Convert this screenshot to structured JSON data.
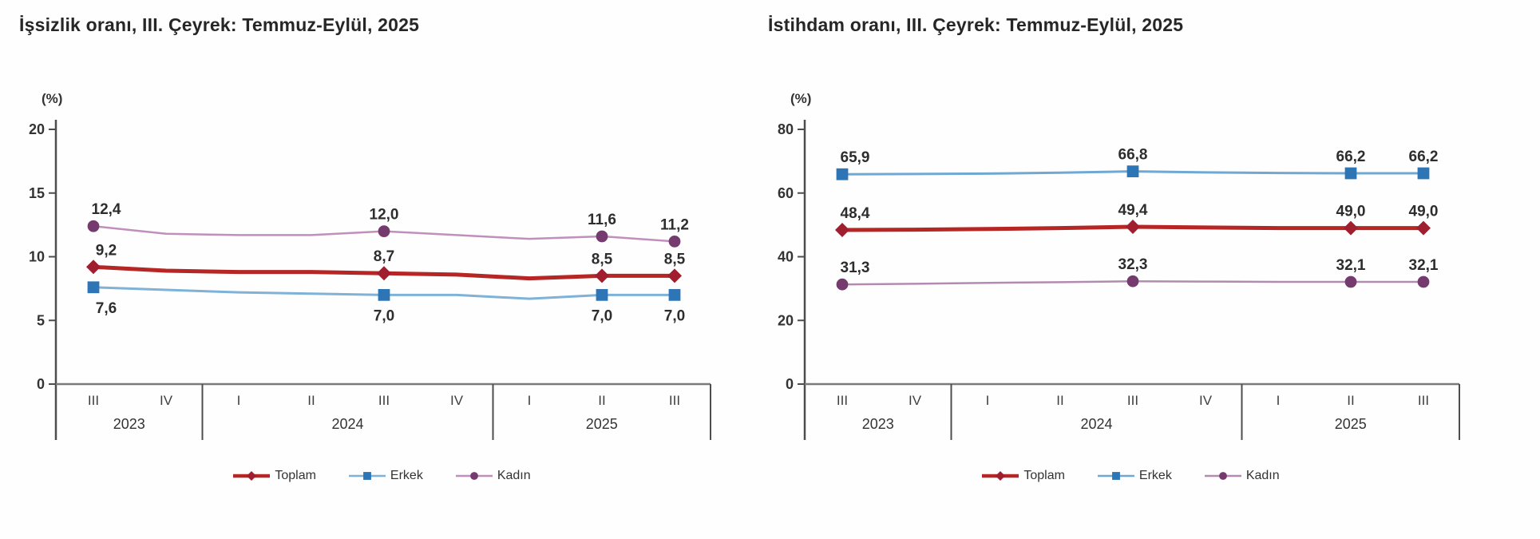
{
  "page": {
    "background": "#fefefe"
  },
  "chart_data": [
    {
      "type": "line",
      "title": "İşsizlik oranı, III. Çeyrek: Temmuz-Eylül, 2025",
      "unit_label": "(%)",
      "ylim": [
        0,
        20
      ],
      "yticks": [
        0,
        5,
        10,
        15,
        20
      ],
      "grid": false,
      "legend_position": "bottom",
      "x_quarters": [
        "III",
        "IV",
        "I",
        "II",
        "III",
        "IV",
        "I",
        "II",
        "III"
      ],
      "year_groups": [
        {
          "label": "2023",
          "count": 2
        },
        {
          "label": "2024",
          "count": 4
        },
        {
          "label": "2025",
          "count": 3
        }
      ],
      "labeled_indices": [
        0,
        4,
        7,
        8
      ],
      "series": [
        {
          "name": "Toplam",
          "marker": "diamond",
          "line_color": "#b52625",
          "marker_color": "#a01e2e",
          "line_width": 5,
          "label_position": "above",
          "values": [
            9.2,
            8.9,
            8.8,
            8.8,
            8.7,
            8.6,
            8.3,
            8.5,
            8.5
          ],
          "point_labels": [
            "9,2",
            "8,7",
            "8,5",
            "8,5"
          ]
        },
        {
          "name": "Erkek",
          "marker": "square",
          "line_color": "#7fb2d6",
          "marker_color": "#2e75b6",
          "line_width": 3,
          "label_position": "below",
          "values": [
            7.6,
            7.4,
            7.2,
            7.1,
            7.0,
            7.0,
            6.7,
            7.0,
            7.0
          ],
          "point_labels": [
            "7,6",
            "7,0",
            "7,0",
            "7,0"
          ]
        },
        {
          "name": "Kadın",
          "marker": "circle",
          "line_color": "#c08fbb",
          "marker_color": "#753a6e",
          "line_width": 2.5,
          "label_position": "above",
          "values": [
            12.4,
            11.8,
            11.7,
            11.7,
            12.0,
            11.7,
            11.4,
            11.6,
            11.2
          ],
          "point_labels": [
            "12,4",
            "12,0",
            "11,6",
            "11,2"
          ]
        }
      ]
    },
    {
      "type": "line",
      "title": "İstihdam oranı, III. Çeyrek: Temmuz-Eylül, 2025",
      "unit_label": "(%)",
      "ylim": [
        0,
        80
      ],
      "yticks": [
        0,
        20,
        40,
        60,
        80
      ],
      "grid": false,
      "legend_position": "bottom",
      "x_quarters": [
        "III",
        "IV",
        "I",
        "II",
        "III",
        "IV",
        "I",
        "II",
        "III"
      ],
      "year_groups": [
        {
          "label": "2023",
          "count": 2
        },
        {
          "label": "2024",
          "count": 4
        },
        {
          "label": "2025",
          "count": 3
        }
      ],
      "labeled_indices": [
        0,
        4,
        7,
        8
      ],
      "series": [
        {
          "name": "Toplam",
          "marker": "diamond",
          "line_color": "#b52625",
          "marker_color": "#a01e2e",
          "line_width": 5,
          "label_position": "above",
          "values": [
            48.4,
            48.5,
            48.7,
            49.0,
            49.4,
            49.2,
            49.0,
            49.0,
            49.0
          ],
          "point_labels": [
            "48,4",
            "49,4",
            "49,0",
            "49,0"
          ]
        },
        {
          "name": "Erkek",
          "marker": "square",
          "line_color": "#6fa8d2",
          "marker_color": "#2e75b6",
          "line_width": 3,
          "label_position": "above",
          "values": [
            65.9,
            66.0,
            66.1,
            66.4,
            66.8,
            66.5,
            66.3,
            66.2,
            66.2
          ],
          "point_labels": [
            "65,9",
            "66,8",
            "66,2",
            "66,2"
          ]
        },
        {
          "name": "Kadın",
          "marker": "circle",
          "line_color": "#b48bb0",
          "marker_color": "#753a6e",
          "line_width": 2.5,
          "label_position": "above",
          "values": [
            31.3,
            31.5,
            31.8,
            32.0,
            32.3,
            32.2,
            32.1,
            32.1,
            32.1
          ],
          "point_labels": [
            "31,3",
            "32,3",
            "32,1",
            "32,1"
          ]
        }
      ]
    }
  ]
}
